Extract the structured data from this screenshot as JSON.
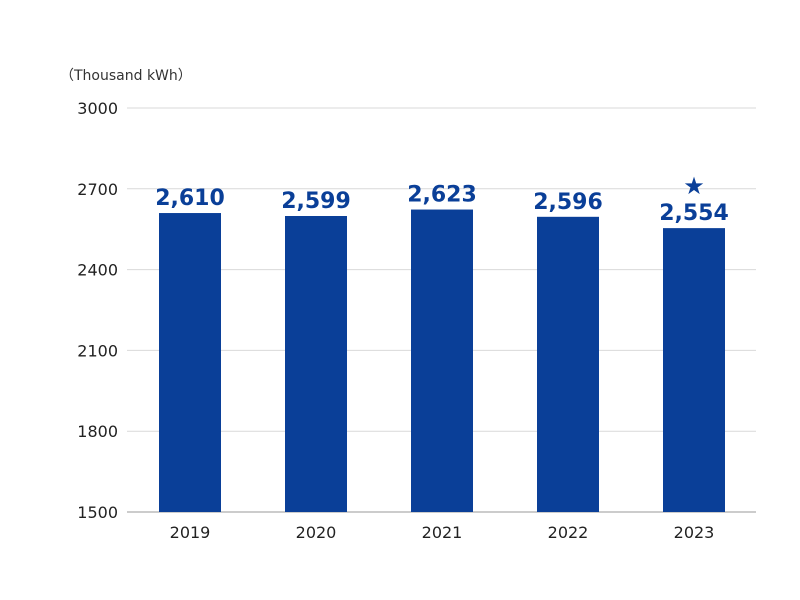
{
  "chart_data": {
    "type": "bar",
    "unit_label": "（Thousand kWh）",
    "categories": [
      "2019",
      "2020",
      "2021",
      "2022",
      "2023"
    ],
    "values": [
      2610,
      2599,
      2623,
      2596,
      2554
    ],
    "value_labels": [
      "2,610",
      "2,599",
      "2,623",
      "2,596",
      "2,554"
    ],
    "highlight_marker": "★",
    "highlight_category": "2023",
    "ylim": [
      1500,
      3000
    ],
    "y_ticks": [
      1500,
      1800,
      2100,
      2400,
      2700,
      3000
    ],
    "y_tick_labels": [
      "1500",
      "1800",
      "2100",
      "2400",
      "2700",
      "3000"
    ],
    "grid": true,
    "bar_color": "#0a3f98",
    "grid_color": "#d9d9d9"
  }
}
